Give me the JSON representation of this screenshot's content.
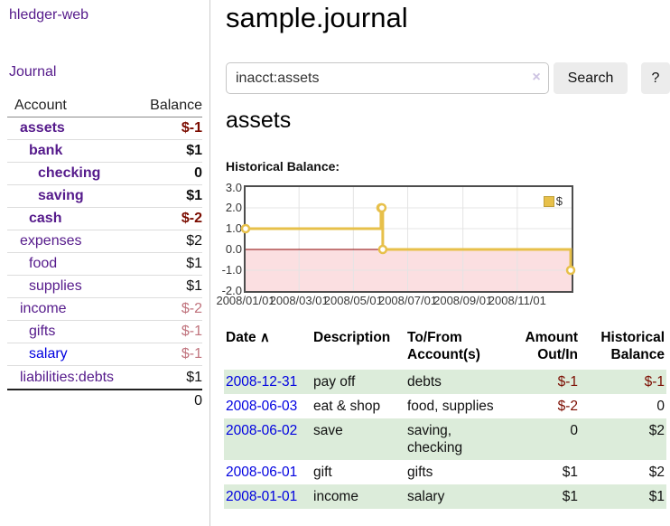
{
  "app": {
    "title": "hledger-web"
  },
  "nav": {
    "journal": "Journal"
  },
  "sidebar": {
    "columns": {
      "account": "Account",
      "balance": "Balance"
    },
    "accounts": [
      {
        "name": "assets",
        "balance": "$-1"
      },
      {
        "name": "bank",
        "balance": "$1"
      },
      {
        "name": "checking",
        "balance": "0"
      },
      {
        "name": "saving",
        "balance": "$1"
      },
      {
        "name": "cash",
        "balance": "$-2"
      },
      {
        "name": "expenses",
        "balance": "$2"
      },
      {
        "name": "food",
        "balance": "$1"
      },
      {
        "name": "supplies",
        "balance": "$1"
      },
      {
        "name": "income",
        "balance": "$-2"
      },
      {
        "name": "gifts",
        "balance": "$-1"
      },
      {
        "name": "salary",
        "balance": "$-1"
      },
      {
        "name": "liabilities:debts",
        "balance": "$1"
      }
    ],
    "total": "0"
  },
  "main": {
    "title": "sample.journal",
    "search": {
      "value": "inacct:assets",
      "clear_icon": "×",
      "search_button": "Search",
      "help_button": "?"
    },
    "account_heading": "assets",
    "chart_title": "Historical Balance:"
  },
  "chart_data": {
    "type": "line",
    "subtype": "step-after",
    "title": "Historical Balance",
    "series": [
      {
        "name": "$",
        "x": [
          "2008-01-01",
          "2008-06-01",
          "2008-06-02",
          "2008-06-03",
          "2008-12-31"
        ],
        "values": [
          1,
          2,
          2,
          0,
          -1
        ]
      }
    ],
    "xlim": [
      "2008-01-01",
      "2009-01-01"
    ],
    "ylim": [
      -2,
      3
    ],
    "yticks": [
      "3.0",
      "2.0",
      "1.0",
      "0.0",
      "-1.0",
      "-2.0"
    ],
    "xticks": [
      "2008/01/01",
      "2008/03/01",
      "2008/05/01",
      "2008/07/01",
      "2008/09/01",
      "2008/11/01"
    ],
    "grid": true,
    "legend_position": "top-right",
    "marker": "open-circle",
    "line_color": "#e7c04a",
    "negative_region_color": "#fbdfe1",
    "zero_line_color": "#8b0000"
  },
  "register": {
    "headers": {
      "date": "Date",
      "sort_icon": "∧",
      "description": "Description",
      "accounts": "To/From Account(s)",
      "amount": "Amount Out/In",
      "balance": "Historical Balance"
    },
    "rows": [
      {
        "date": "2008-12-31",
        "description": "pay off",
        "accounts": "debts",
        "amount": "$-1",
        "balance": "$-1"
      },
      {
        "date": "2008-06-03",
        "description": "eat & shop",
        "accounts": "food, supplies",
        "amount": "$-2",
        "balance": "0"
      },
      {
        "date": "2008-06-02",
        "description": "save",
        "accounts": "saving, checking",
        "amount": "0",
        "balance": "$2"
      },
      {
        "date": "2008-06-01",
        "description": "gift",
        "accounts": "gifts",
        "amount": "$1",
        "balance": "$2"
      },
      {
        "date": "2008-01-01",
        "description": "income",
        "accounts": "salary",
        "amount": "$1",
        "balance": "$1"
      }
    ]
  },
  "colors": {
    "link_purple": "#551a8b",
    "link_blue": "#0000e0",
    "negative": "#7b0c00",
    "negative_dim": "#c0737d",
    "row_green": "#dcecda",
    "chart_line": "#e7c04a"
  }
}
